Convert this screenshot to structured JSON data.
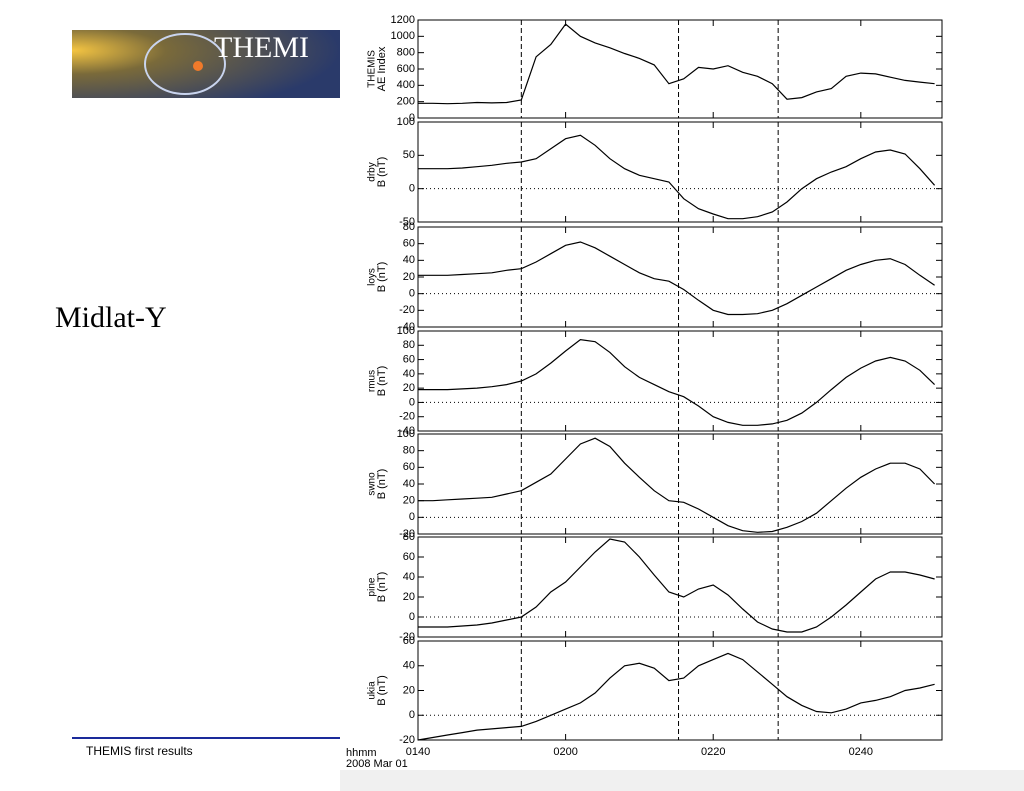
{
  "slide": {
    "title": "Midlat-Y",
    "footer": "THEMIS first results",
    "logo_text": "THEMI"
  },
  "shared_x": {
    "x": [
      100,
      102,
      104,
      106,
      108,
      110,
      112,
      114,
      116,
      118,
      120,
      122,
      124,
      126,
      128,
      130,
      132,
      134,
      136,
      138,
      140,
      142,
      144,
      146,
      148,
      150,
      152,
      154,
      156,
      158,
      160,
      162,
      164,
      166,
      168,
      170
    ],
    "xlim": [
      100,
      171
    ],
    "xticks": [
      {
        "value": 100,
        "label": "0140"
      },
      {
        "value": 120,
        "label": "0200"
      },
      {
        "value": 140,
        "label": "0220"
      },
      {
        "value": 160,
        "label": "0240"
      }
    ],
    "xlabel": "hhmm",
    "date": "2008 Mar 01",
    "event_lines": [
      114,
      135.3,
      148.8
    ]
  },
  "chart_data": [
    {
      "type": "line",
      "station": "THEMIS",
      "ylabel": "AE Index",
      "color": "#000000",
      "zero_line": false,
      "ylim": [
        0,
        1200
      ],
      "yticks": [
        0,
        200,
        400,
        600,
        800,
        1000,
        1200
      ],
      "values": [
        180,
        180,
        175,
        180,
        190,
        185,
        190,
        220,
        750,
        900,
        1150,
        1000,
        920,
        860,
        790,
        730,
        650,
        420,
        480,
        620,
        600,
        640,
        560,
        510,
        420,
        230,
        250,
        320,
        360,
        510,
        550,
        540,
        500,
        460,
        440,
        420
      ]
    },
    {
      "type": "line",
      "station": "drby",
      "ylabel": "B (nT)",
      "color": "#000000",
      "zero_line": true,
      "ylim": [
        -50,
        100
      ],
      "yticks": [
        -50,
        0,
        50,
        100
      ],
      "values": [
        30,
        30,
        30,
        31,
        33,
        35,
        38,
        40,
        45,
        60,
        75,
        80,
        65,
        45,
        30,
        20,
        15,
        10,
        -15,
        -30,
        -38,
        -45,
        -45,
        -42,
        -35,
        -20,
        0,
        15,
        25,
        33,
        45,
        55,
        58,
        52,
        30,
        5
      ]
    },
    {
      "type": "line",
      "station": "loys",
      "ylabel": "B (nT)",
      "color": "#000000",
      "zero_line": true,
      "ylim": [
        -40,
        80
      ],
      "yticks": [
        -40,
        -20,
        0,
        20,
        40,
        60,
        80
      ],
      "values": [
        22,
        22,
        22,
        23,
        24,
        25,
        28,
        30,
        38,
        48,
        58,
        62,
        55,
        45,
        35,
        25,
        18,
        15,
        5,
        -8,
        -20,
        -25,
        -25,
        -24,
        -20,
        -12,
        -2,
        8,
        18,
        28,
        35,
        40,
        42,
        35,
        22,
        10
      ]
    },
    {
      "type": "line",
      "station": "rmus",
      "ylabel": "B (nT)",
      "color": "#000000",
      "zero_line": true,
      "ylim": [
        -40,
        100
      ],
      "yticks": [
        -40,
        -20,
        0,
        20,
        40,
        60,
        80,
        100
      ],
      "values": [
        18,
        18,
        18,
        19,
        20,
        22,
        25,
        30,
        40,
        55,
        72,
        88,
        85,
        70,
        50,
        35,
        25,
        15,
        8,
        -5,
        -20,
        -28,
        -32,
        -32,
        -30,
        -25,
        -15,
        0,
        18,
        35,
        48,
        58,
        63,
        58,
        45,
        25
      ]
    },
    {
      "type": "line",
      "station": "swno",
      "ylabel": "B (nT)",
      "color": "#000000",
      "zero_line": true,
      "ylim": [
        -20,
        100
      ],
      "yticks": [
        -20,
        0,
        20,
        40,
        60,
        80,
        100
      ],
      "values": [
        20,
        20,
        21,
        22,
        23,
        24,
        28,
        32,
        42,
        52,
        70,
        88,
        95,
        85,
        65,
        48,
        32,
        20,
        18,
        10,
        0,
        -10,
        -16,
        -18,
        -17,
        -12,
        -5,
        5,
        20,
        35,
        48,
        58,
        65,
        65,
        58,
        40
      ]
    },
    {
      "type": "line",
      "station": "pine",
      "ylabel": "B (nT)",
      "color": "#000000",
      "zero_line": true,
      "ylim": [
        -20,
        80
      ],
      "yticks": [
        -20,
        0,
        20,
        40,
        60,
        80
      ],
      "values": [
        -10,
        -10,
        -10,
        -9,
        -8,
        -6,
        -3,
        0,
        10,
        25,
        35,
        50,
        65,
        78,
        75,
        60,
        42,
        25,
        20,
        28,
        32,
        22,
        8,
        -5,
        -12,
        -15,
        -15,
        -10,
        0,
        12,
        25,
        38,
        45,
        45,
        42,
        38
      ]
    },
    {
      "type": "line",
      "station": "ukia",
      "ylabel": "B (nT)",
      "color": "#000000",
      "zero_line": true,
      "ylim": [
        -20,
        60
      ],
      "yticks": [
        -20,
        0,
        20,
        40,
        60
      ],
      "values": [
        -20,
        -18,
        -16,
        -14,
        -12,
        -11,
        -10,
        -9,
        -5,
        0,
        5,
        10,
        18,
        30,
        40,
        42,
        38,
        28,
        30,
        40,
        45,
        50,
        45,
        35,
        25,
        15,
        8,
        3,
        2,
        5,
        10,
        12,
        15,
        20,
        22,
        25
      ]
    }
  ]
}
